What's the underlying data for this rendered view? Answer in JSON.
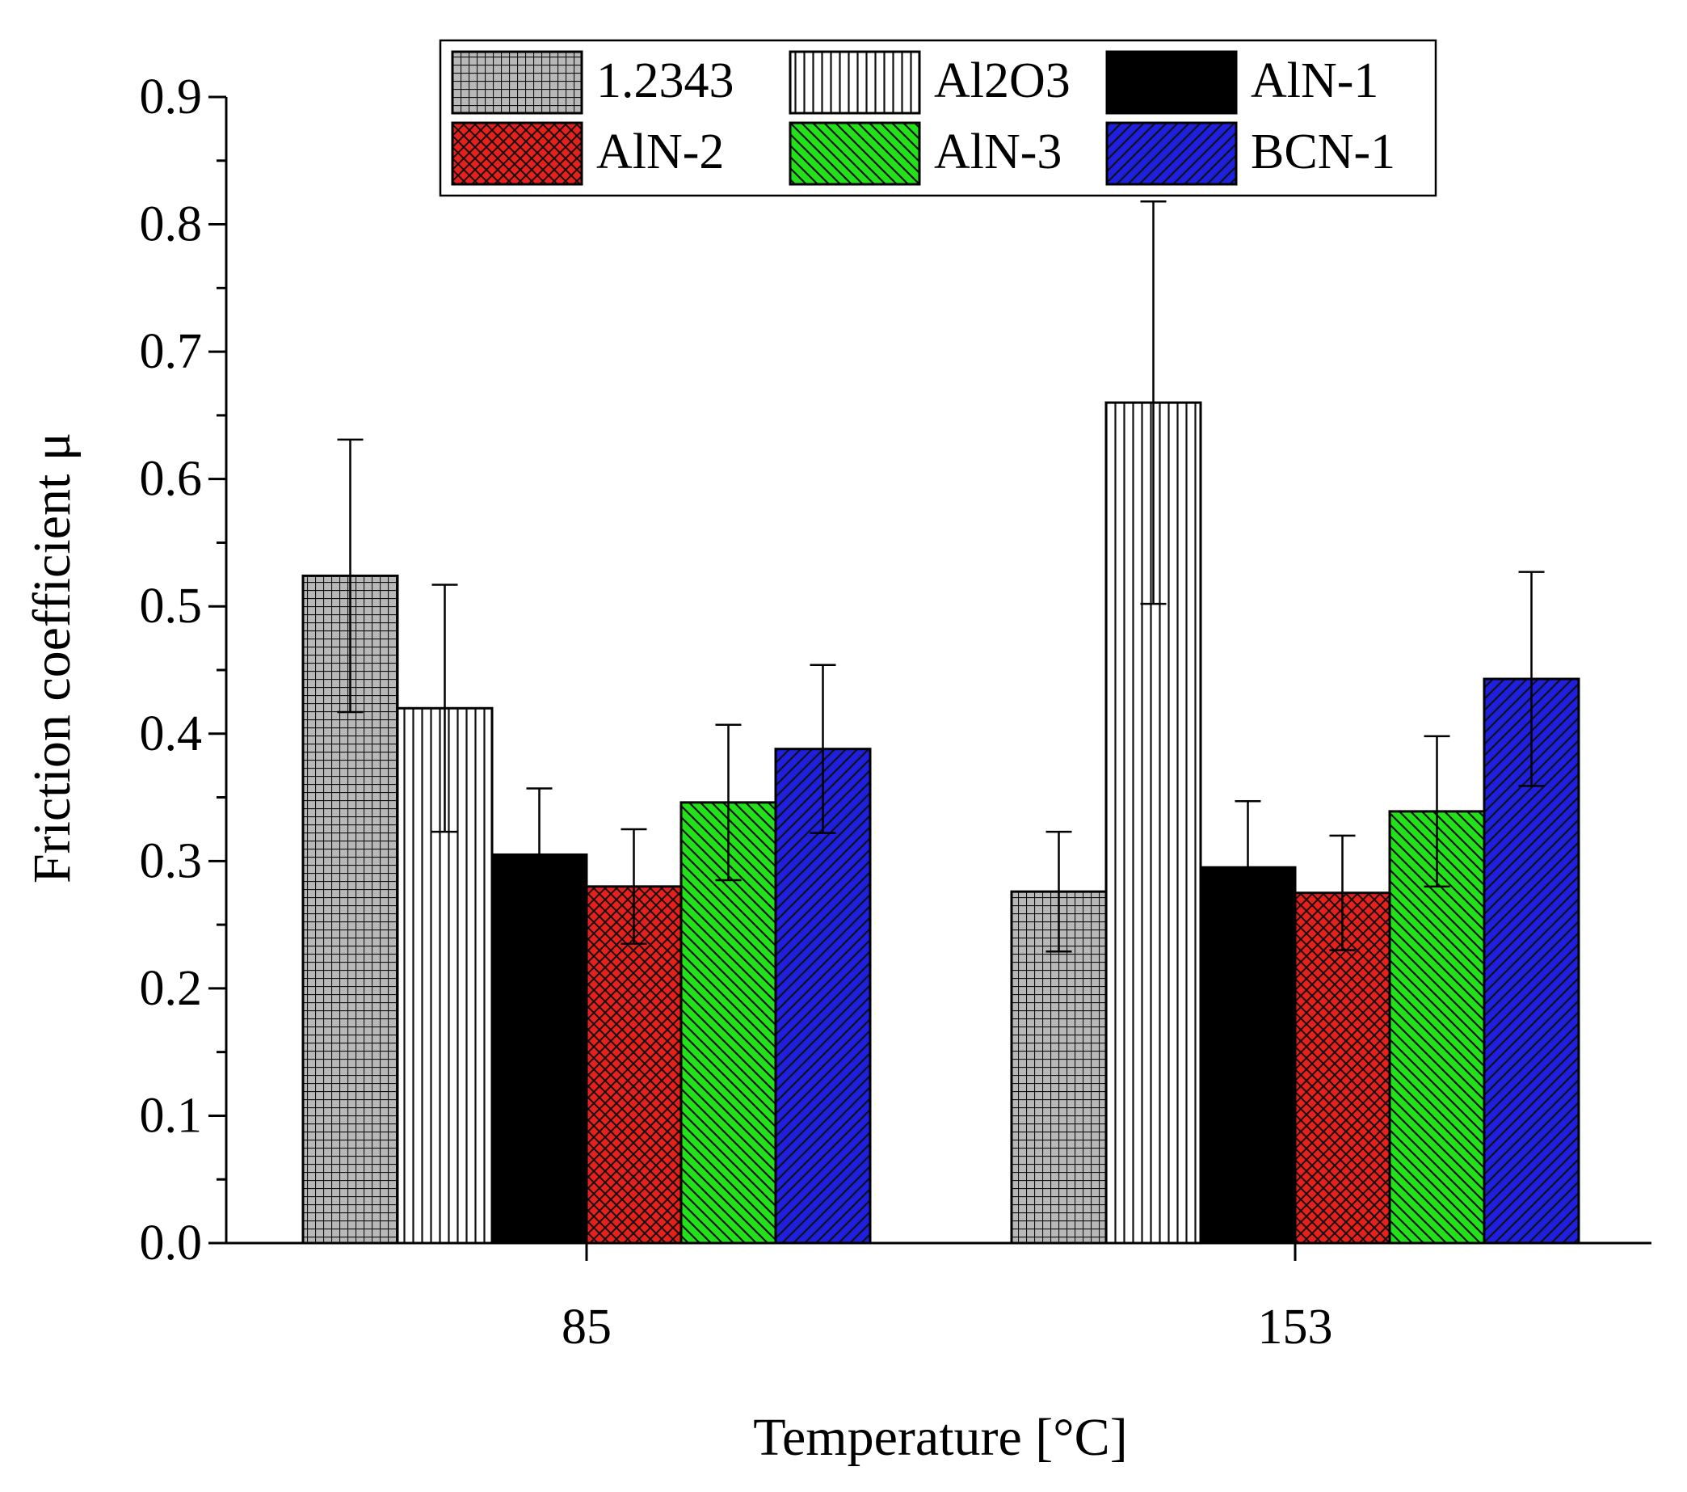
{
  "chart_data": {
    "type": "bar",
    "title": "",
    "xlabel": "Temperature [°C]",
    "ylabel": "Friction coefficient μ",
    "categories": [
      "85",
      "153"
    ],
    "ylim": [
      0.0,
      0.9
    ],
    "yticks": [
      "0.0",
      "0.1",
      "0.2",
      "0.3",
      "0.4",
      "0.5",
      "0.6",
      "0.7",
      "0.8",
      "0.9"
    ],
    "grid": false,
    "legend_position": "top",
    "error_bars": true,
    "series": [
      {
        "name": "1.2343",
        "values": [
          0.524,
          0.276
        ],
        "errors": [
          0.107,
          0.047
        ],
        "color": "#b8b8b8",
        "pattern": "grid"
      },
      {
        "name": "Al2O3",
        "values": [
          0.42,
          0.66
        ],
        "errors": [
          0.097,
          0.158
        ],
        "color": "#ffffff",
        "pattern": "vertical"
      },
      {
        "name": "AlN-1",
        "values": [
          0.305,
          0.295
        ],
        "errors": [
          0.052,
          0.052
        ],
        "color": "#000000",
        "pattern": "solid"
      },
      {
        "name": "AlN-2",
        "values": [
          0.28,
          0.275
        ],
        "errors": [
          0.045,
          0.045
        ],
        "color": "#e8201c",
        "pattern": "crosshatch"
      },
      {
        "name": "AlN-3",
        "values": [
          0.346,
          0.339
        ],
        "errors": [
          0.061,
          0.059
        ],
        "color": "#22e01a",
        "pattern": "diag-down"
      },
      {
        "name": "BCN-1",
        "values": [
          0.388,
          0.443
        ],
        "errors": [
          0.066,
          0.084
        ],
        "color": "#1f1fe0",
        "pattern": "diag-up"
      }
    ]
  }
}
